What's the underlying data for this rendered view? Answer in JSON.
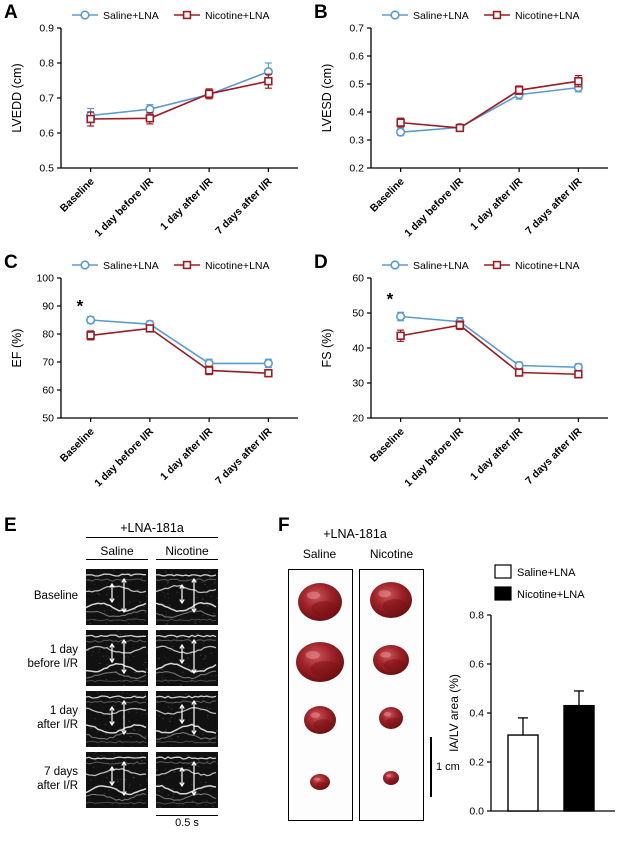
{
  "labels": {
    "A": "A",
    "B": "B",
    "C": "C",
    "D": "D",
    "E": "E",
    "F": "F"
  },
  "colors": {
    "saline_blue": "#5b9bd5",
    "nicotine_red": "#9e1b23"
  },
  "chart_data": [
    {
      "id": "A",
      "type": "line",
      "title": "",
      "xlabel": "",
      "ylabel": "LVEDD (cm)",
      "categories": [
        "Baseline",
        "1 day before I/R",
        "1 day after I/R",
        "7 days after I/R"
      ],
      "ylim": [
        0.5,
        0.9
      ],
      "yticks": [
        0.5,
        0.6,
        0.7,
        0.8,
        0.9
      ],
      "ytick_labels": [
        "0.5",
        "0.6",
        "0.7",
        "0.8",
        "0.9"
      ],
      "legend_position": "top",
      "grid": false,
      "series": [
        {
          "name": "Saline+LNA",
          "color": "#5b9bd5",
          "marker": "circle",
          "values": [
            0.65,
            0.668,
            0.71,
            0.775
          ],
          "errors": [
            0.02,
            0.013,
            0.012,
            0.025
          ]
        },
        {
          "name": "Nicotine+LNA",
          "color": "#9e1b23",
          "marker": "square",
          "values": [
            0.64,
            0.642,
            0.712,
            0.748
          ],
          "errors": [
            0.02,
            0.016,
            0.014,
            0.02
          ]
        }
      ],
      "annotations": []
    },
    {
      "id": "B",
      "type": "line",
      "title": "",
      "xlabel": "",
      "ylabel": "LVESD (cm)",
      "categories": [
        "Baseline",
        "1 day before I/R",
        "1 day after I/R",
        "7 days after I/R"
      ],
      "ylim": [
        0.2,
        0.7
      ],
      "yticks": [
        0.2,
        0.3,
        0.4,
        0.5,
        0.6,
        0.7
      ],
      "ytick_labels": [
        "0.2",
        "0.3",
        "0.4",
        "0.5",
        "0.6",
        "0.7"
      ],
      "legend_position": "top",
      "grid": false,
      "series": [
        {
          "name": "Saline+LNA",
          "color": "#5b9bd5",
          "marker": "circle",
          "values": [
            0.328,
            0.345,
            0.462,
            0.487
          ],
          "errors": [
            0.012,
            0.01,
            0.016,
            0.015
          ]
        },
        {
          "name": "Nicotine+LNA",
          "color": "#9e1b23",
          "marker": "square",
          "values": [
            0.362,
            0.343,
            0.478,
            0.51
          ],
          "errors": [
            0.016,
            0.012,
            0.015,
            0.02
          ]
        }
      ],
      "annotations": []
    },
    {
      "id": "C",
      "type": "line",
      "title": "",
      "xlabel": "",
      "ylabel": "EF (%)",
      "categories": [
        "Baseline",
        "1 day before I/R",
        "1 day after I/R",
        "7 days after I/R"
      ],
      "ylim": [
        50,
        100
      ],
      "yticks": [
        50,
        60,
        70,
        80,
        90,
        100
      ],
      "ytick_labels": [
        "50",
        "60",
        "70",
        "80",
        "90",
        "100"
      ],
      "legend_position": "top",
      "grid": false,
      "series": [
        {
          "name": "Saline+LNA",
          "color": "#5b9bd5",
          "marker": "circle",
          "values": [
            85.0,
            83.5,
            69.5,
            69.5
          ],
          "errors": [
            1.2,
            1.2,
            1.5,
            1.5
          ]
        },
        {
          "name": "Nicotine+LNA",
          "color": "#9e1b23",
          "marker": "square",
          "values": [
            79.5,
            82.0,
            67.0,
            66.0
          ],
          "errors": [
            1.6,
            1.2,
            1.5,
            1.2
          ]
        }
      ],
      "annotations": [
        {
          "text": "*",
          "x": 0,
          "y": 88
        }
      ]
    },
    {
      "id": "D",
      "type": "line",
      "title": "",
      "xlabel": "",
      "ylabel": "FS (%)",
      "categories": [
        "Baseline",
        "1 day before I/R",
        "1 day after I/R",
        "7 days after I/R"
      ],
      "ylim": [
        20,
        60
      ],
      "yticks": [
        20,
        30,
        40,
        50,
        60
      ],
      "ytick_labels": [
        "20",
        "30",
        "40",
        "50",
        "60"
      ],
      "legend_position": "top",
      "grid": false,
      "series": [
        {
          "name": "Saline+LNA",
          "color": "#5b9bd5",
          "marker": "circle",
          "values": [
            49.0,
            47.5,
            35.0,
            34.5
          ],
          "errors": [
            1.2,
            1.2,
            1.0,
            1.0
          ]
        },
        {
          "name": "Nicotine+LNA",
          "color": "#9e1b23",
          "marker": "square",
          "values": [
            43.5,
            46.5,
            33.0,
            32.5
          ],
          "errors": [
            1.6,
            1.2,
            1.0,
            1.0
          ]
        }
      ],
      "annotations": [
        {
          "text": "*",
          "x": 0,
          "y": 52.5
        }
      ]
    },
    {
      "id": "F",
      "type": "bar",
      "title": "",
      "xlabel": "",
      "ylabel": "IA/LV area (%)",
      "categories": [
        "Saline+LNA",
        "Nicotine+LNA"
      ],
      "values": [
        0.31,
        0.43
      ],
      "errors": [
        0.07,
        0.06
      ],
      "bar_colors": [
        "#ffffff",
        "#000000"
      ],
      "ylim": [
        0,
        0.8
      ],
      "yticks": [
        0,
        0.2,
        0.4,
        0.6,
        0.8
      ],
      "ytick_labels": [
        "0.0",
        "0.2",
        "0.4",
        "0.6",
        "0.8"
      ],
      "legend_position": "top-right",
      "grid": false,
      "legend": [
        {
          "label": "Saline+LNA",
          "fill": "#ffffff"
        },
        {
          "label": "Nicotine+LNA",
          "fill": "#000000"
        }
      ]
    }
  ],
  "panel_e": {
    "header": "+LNA-181a",
    "columns": [
      "Saline",
      "Nicotine"
    ],
    "row_labels": [
      [
        "Baseline"
      ],
      [
        "1 day",
        "before I/R"
      ],
      [
        "1 day",
        "after I/R"
      ],
      [
        "7 days",
        "after I/R"
      ]
    ],
    "scale_label": "0.5 s"
  },
  "panel_f": {
    "header": "+LNA-181a",
    "columns": [
      "Saline",
      "Nicotine"
    ],
    "scale_label": "1 cm"
  }
}
